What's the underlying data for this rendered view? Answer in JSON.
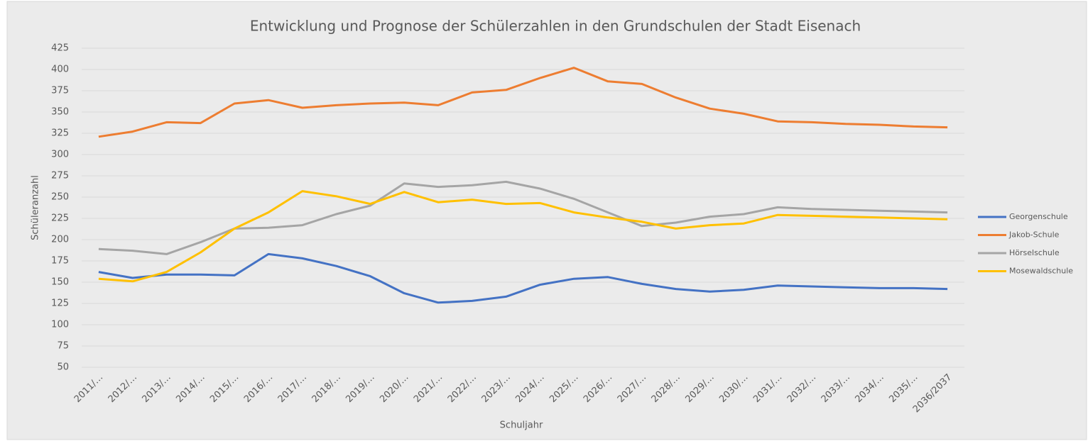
{
  "chart_data": {
    "type": "line",
    "title": "Entwicklung und Prognose der Schülerzahlen in den Grundschulen der Stadt Eisenach",
    "x_label": "Schuljahr",
    "y_label": "Schüleranzahl",
    "categories": [
      "2011/…",
      "2012/…",
      "2013/…",
      "2014/…",
      "2015/…",
      "2016/…",
      "2017/…",
      "2018/…",
      "2019/…",
      "2020/…",
      "2021/…",
      "2022/…",
      "2023/…",
      "2024/…",
      "2025/…",
      "2026/…",
      "2027/…",
      "2028/…",
      "2029/…",
      "2030/…",
      "2031/…",
      "2032/…",
      "2033/…",
      "2034/…",
      "2035/…",
      "2036/2037"
    ],
    "series": [
      {
        "name": "Georgenschule",
        "color": "#4472c4",
        "values": [
          162,
          155,
          159,
          159,
          158,
          183,
          178,
          169,
          157,
          137,
          126,
          128,
          133,
          147,
          154,
          156,
          148,
          142,
          139,
          141,
          146,
          145,
          144,
          143,
          143,
          142
        ]
      },
      {
        "name": "Jakob-Schule",
        "color": "#ed7d31",
        "values": [
          321,
          327,
          338,
          337,
          360,
          364,
          355,
          358,
          360,
          361,
          358,
          373,
          376,
          390,
          402,
          386,
          383,
          367,
          354,
          348,
          339,
          338,
          336,
          335,
          333,
          332
        ]
      },
      {
        "name": "Hörselschule",
        "color": "#a5a5a5",
        "values": [
          189,
          187,
          183,
          197,
          213,
          214,
          217,
          230,
          240,
          266,
          262,
          264,
          268,
          260,
          248,
          232,
          216,
          220,
          227,
          230,
          238,
          236,
          235,
          234,
          233,
          232
        ]
      },
      {
        "name": "Mosewaldschule",
        "color": "#ffc000",
        "values": [
          154,
          151,
          162,
          185,
          213,
          232,
          257,
          251,
          242,
          256,
          244,
          247,
          242,
          243,
          232,
          226,
          221,
          213,
          217,
          219,
          229,
          228,
          227,
          226,
          225,
          224
        ]
      }
    ],
    "ylim": [
      50,
      425
    ],
    "yticks": [
      50,
      75,
      100,
      125,
      150,
      175,
      200,
      225,
      250,
      275,
      300,
      325,
      350,
      375,
      400,
      425
    ],
    "grid": true,
    "legend": "right"
  }
}
